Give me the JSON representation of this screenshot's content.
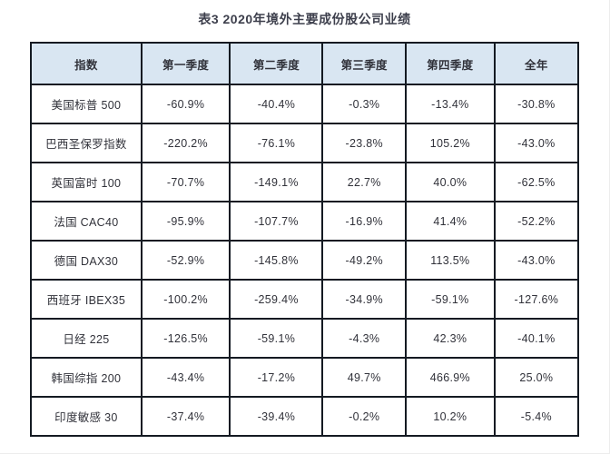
{
  "page": {
    "title": "表3 2020年境外主要成份股公司业绩"
  },
  "chart_data": {
    "type": "table",
    "title": "表3 2020年境外主要成份股公司业绩",
    "columns": [
      "指数",
      "第一季度",
      "第二季度",
      "第三季度",
      "第四季度",
      "全年"
    ],
    "rows": [
      {
        "index": "美国标普 500",
        "values": [
          "-60.9%",
          "-40.4%",
          "-0.3%",
          "-13.4%",
          "-30.8%"
        ]
      },
      {
        "index": "巴西圣保罗指数",
        "values": [
          "-220.2%",
          "-76.1%",
          "-23.8%",
          "105.2%",
          "-43.0%"
        ]
      },
      {
        "index": "英国富时 100",
        "values": [
          "-70.7%",
          "-149.1%",
          "22.7%",
          "40.0%",
          "-62.5%"
        ]
      },
      {
        "index": "法国 CAC40",
        "values": [
          "-95.9%",
          "-107.7%",
          "-16.9%",
          "41.4%",
          "-52.2%"
        ]
      },
      {
        "index": "德国 DAX30",
        "values": [
          "-52.9%",
          "-145.8%",
          "-49.2%",
          "113.5%",
          "-43.0%"
        ]
      },
      {
        "index": "西班牙 IBEX35",
        "values": [
          "-100.2%",
          "-259.4%",
          "-34.9%",
          "-59.1%",
          "-127.6%"
        ]
      },
      {
        "index": "日经 225",
        "values": [
          "-126.5%",
          "-59.1%",
          "-4.3%",
          "42.3%",
          "-40.1%"
        ]
      },
      {
        "index": "韩国综指 200",
        "values": [
          "-43.4%",
          "-17.2%",
          "49.7%",
          "466.9%",
          "25.0%"
        ]
      },
      {
        "index": "印度敏感 30",
        "values": [
          "-37.4%",
          "-39.4%",
          "-0.2%",
          "10.2%",
          "-5.4%"
        ]
      }
    ]
  },
  "colors": {
    "page_bg": "#ffffff",
    "header_bg": "#d9e6f2",
    "border": "#141a22",
    "title_text": "#3d3f4c",
    "cell_text": "#31323a"
  }
}
